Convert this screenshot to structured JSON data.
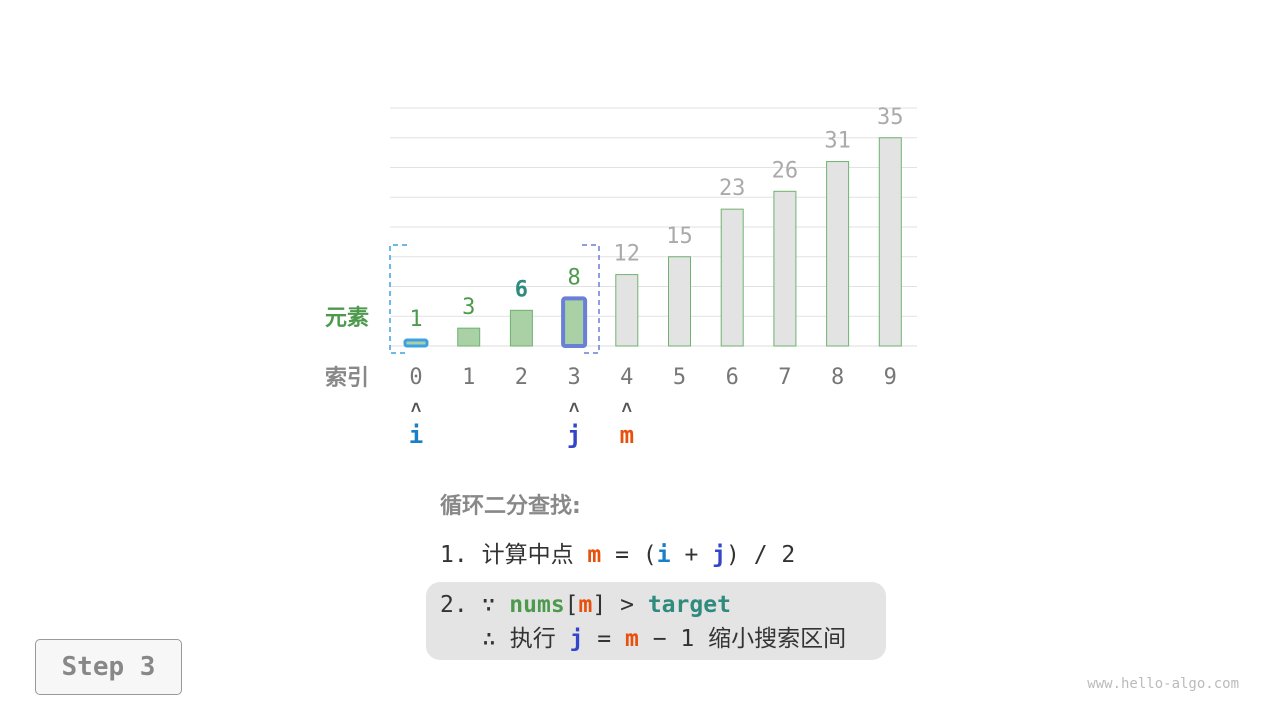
{
  "chart_data": {
    "type": "bar",
    "categories": [
      "0",
      "1",
      "2",
      "3",
      "4",
      "5",
      "6",
      "7",
      "8",
      "9"
    ],
    "values": [
      1,
      3,
      6,
      8,
      12,
      15,
      23,
      26,
      31,
      35
    ],
    "ylim": [
      0,
      40
    ],
    "grid": true,
    "row_labels": {
      "elements": "元素",
      "indices": "索引"
    },
    "search_range": [
      0,
      3
    ],
    "colors": {
      "in_range_fill": "#a9d1a5",
      "out_range_fill": "#e3e3e3",
      "bar_stroke": "#6fb26f",
      "in_label": "#4d9a4d",
      "out_label": "#aaaaaa",
      "target_label": "#2e8b7d",
      "i_color": "#3ea0e4",
      "j_color": "#6a7fd6"
    },
    "target_index": 2
  },
  "pointers": [
    {
      "name": "i",
      "index": 0,
      "arrow": "˄",
      "color": "#1a7fc9"
    },
    {
      "name": "j",
      "index": 3,
      "arrow": "˄",
      "color": "#3346c9"
    },
    {
      "name": "m",
      "index": 4,
      "arrow": "˄",
      "color": "#e8500e"
    }
  ],
  "steps": {
    "title": "循环二分查找:",
    "s1": {
      "num": "1.",
      "text": "计算中点",
      "m": "m",
      "eq": "=",
      "lp": "(",
      "i": "i",
      "plus": "+",
      "j": "j",
      "rp": ")",
      "div": "/ 2"
    },
    "s2": {
      "num": "2.",
      "because": "∵",
      "nums": "nums",
      "lb": "[",
      "m": "m",
      "rb": "]",
      "gt": ">",
      "target": "target"
    },
    "s3": {
      "therefore": "∴",
      "exec": "执行",
      "j": "j",
      "eq": "=",
      "m": "m",
      "minus": "− 1",
      "desc": "缩小搜索区间"
    }
  },
  "step_button": "Step 3",
  "watermark": "www.hello-algo.com"
}
